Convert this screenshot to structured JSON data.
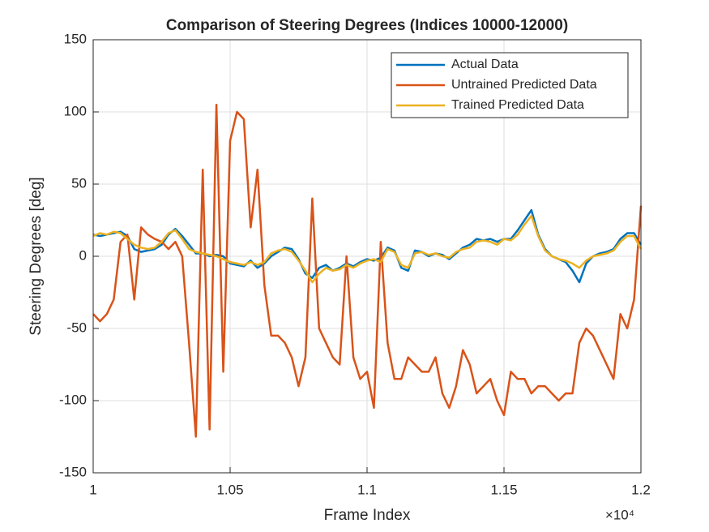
{
  "chart_data": {
    "type": "line",
    "title": "Comparison of Steering Degrees (Indices 10000-12000)",
    "x_label": "Frame Index",
    "y_label": "Steering Degrees [deg]",
    "x_exponent_label": "×10⁴",
    "x": [
      10000,
      10025,
      10050,
      10075,
      10100,
      10125,
      10150,
      10175,
      10200,
      10225,
      10250,
      10275,
      10300,
      10325,
      10350,
      10375,
      10400,
      10425,
      10450,
      10475,
      10500,
      10525,
      10550,
      10575,
      10600,
      10625,
      10650,
      10675,
      10700,
      10725,
      10750,
      10775,
      10800,
      10825,
      10850,
      10875,
      10900,
      10925,
      10950,
      10975,
      11000,
      11025,
      11050,
      11075,
      11100,
      11125,
      11150,
      11175,
      11200,
      11225,
      11250,
      11275,
      11300,
      11325,
      11350,
      11375,
      11400,
      11425,
      11450,
      11475,
      11500,
      11525,
      11550,
      11575,
      11600,
      11625,
      11650,
      11675,
      11700,
      11725,
      11750,
      11775,
      11800,
      11825,
      11850,
      11875,
      11900,
      11925,
      11950,
      11975,
      12000
    ],
    "series": [
      {
        "name": "Actual Data",
        "color": "#0072BD",
        "values": [
          15,
          14,
          15,
          16,
          17,
          14,
          5,
          3,
          4,
          5,
          8,
          15,
          19,
          14,
          8,
          2,
          2,
          0,
          1,
          0,
          -5,
          -6,
          -7,
          -3,
          -8,
          -5,
          0,
          3,
          6,
          5,
          -2,
          -12,
          -15,
          -8,
          -6,
          -10,
          -8,
          -5,
          -7,
          -4,
          -2,
          -3,
          -1,
          6,
          4,
          -8,
          -10,
          4,
          3,
          0,
          2,
          1,
          -2,
          2,
          6,
          8,
          12,
          11,
          12,
          10,
          12,
          12,
          18,
          25,
          32,
          15,
          5,
          0,
          -2,
          -4,
          -10,
          -18,
          -5,
          0,
          2,
          3,
          5,
          12,
          16,
          16,
          8
        ]
      },
      {
        "name": "Untrained Predicted Data",
        "color": "#D95319",
        "values": [
          -40,
          -45,
          -40,
          -30,
          10,
          15,
          -30,
          20,
          15,
          12,
          10,
          5,
          10,
          0,
          -60,
          -125,
          60,
          -120,
          105,
          -80,
          80,
          100,
          95,
          20,
          60,
          -20,
          -55,
          -55,
          -60,
          -70,
          -90,
          -70,
          40,
          -50,
          -60,
          -70,
          -75,
          0,
          -70,
          -85,
          -80,
          -105,
          10,
          -60,
          -85,
          -85,
          -70,
          -75,
          -80,
          -80,
          -70,
          -95,
          -105,
          -90,
          -65,
          -75,
          -95,
          -90,
          -85,
          -100,
          -110,
          -80,
          -85,
          -85,
          -95,
          -90,
          -90,
          -95,
          -100,
          -95,
          -95,
          -60,
          -50,
          -55,
          -65,
          -75,
          -85,
          -40,
          -50,
          -30,
          35
        ]
      },
      {
        "name": "Trained Predicted Data",
        "color": "#EDB120",
        "values": [
          14,
          16,
          15,
          17,
          16,
          12,
          8,
          6,
          5,
          6,
          10,
          16,
          18,
          12,
          5,
          3,
          2,
          1,
          0,
          -2,
          -4,
          -5,
          -6,
          -4,
          -6,
          -4,
          2,
          4,
          5,
          3,
          -3,
          -10,
          -18,
          -12,
          -8,
          -10,
          -9,
          -6,
          -8,
          -5,
          -3,
          -2,
          -4,
          5,
          3,
          -6,
          -8,
          2,
          3,
          1,
          2,
          0,
          -1,
          3,
          5,
          6,
          10,
          11,
          10,
          8,
          12,
          11,
          15,
          22,
          28,
          14,
          4,
          0,
          -2,
          -3,
          -5,
          -8,
          -3,
          0,
          1,
          2,
          4,
          10,
          14,
          14,
          5
        ]
      }
    ],
    "xlim": [
      10000,
      12000
    ],
    "xticks": [
      {
        "value": 10000,
        "label": "1"
      },
      {
        "value": 10500,
        "label": "1.05"
      },
      {
        "value": 11000,
        "label": "1.1"
      },
      {
        "value": 11500,
        "label": "1.15"
      },
      {
        "value": 12000,
        "label": "1.2"
      }
    ],
    "ylim": [
      -150,
      150
    ],
    "yticks": [
      -150,
      -100,
      -50,
      0,
      50,
      100,
      150
    ],
    "grid": true,
    "legend": "northeast"
  }
}
